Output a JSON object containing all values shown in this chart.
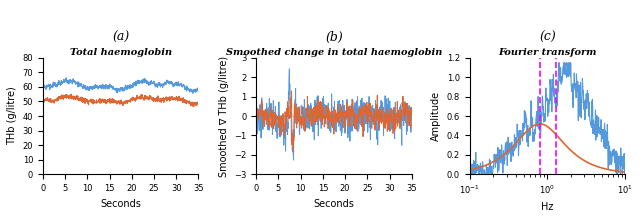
{
  "panel_labels": [
    "(a)",
    "(b)",
    "(c)"
  ],
  "panel_a": {
    "title": "Total haemoglobin",
    "xlabel": "Seconds",
    "ylabel": "THb (g/litre)",
    "xlim": [
      0,
      35
    ],
    "ylim": [
      0,
      80
    ],
    "yticks": [
      0,
      10,
      20,
      30,
      40,
      50,
      60,
      70,
      80
    ],
    "xticks": [
      0,
      5,
      10,
      15,
      20,
      25,
      30,
      35
    ],
    "color_blue": "#5599dd",
    "color_orange": "#dd6633",
    "blue_mean": 61,
    "blue_std": 2.5,
    "orange_mean": 51,
    "orange_std": 2.0,
    "n_points": 700,
    "duration": 35
  },
  "panel_b": {
    "title": "Smoothed change in total haemoglobin",
    "xlabel": "Seconds",
    "ylabel": "Smoothed ∇ THb (g/litre)",
    "xlim": [
      0,
      35
    ],
    "ylim": [
      -3,
      3
    ],
    "yticks": [
      -3,
      -2,
      -1,
      0,
      1,
      2,
      3
    ],
    "xticks": [
      0,
      5,
      10,
      15,
      20,
      25,
      30,
      35
    ],
    "color_blue": "#5599dd",
    "color_orange": "#dd6633",
    "n_points": 700,
    "duration": 35
  },
  "panel_c": {
    "title": "Fourier transform",
    "xlabel": "Hz",
    "ylabel": "Amplitude",
    "xlim_log": [
      -1,
      1
    ],
    "ylim": [
      0,
      1.2
    ],
    "yticks": [
      0,
      0.2,
      0.4,
      0.6,
      0.8,
      1.0,
      1.2
    ],
    "color_blue": "#5599dd",
    "color_orange": "#dd6633",
    "color_magenta": "#ff00ff",
    "vline1": 0.8,
    "vline2": 1.3,
    "freq_min": 0.1,
    "freq_max": 10.0
  }
}
